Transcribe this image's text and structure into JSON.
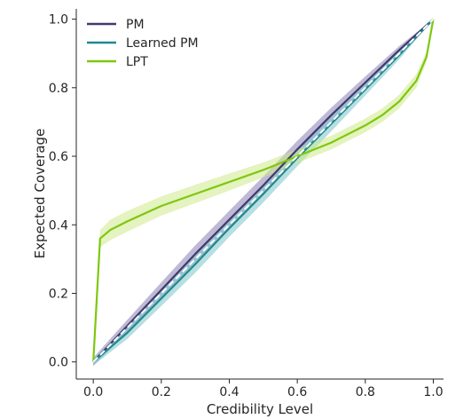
{
  "chart_data": {
    "type": "line",
    "title": "",
    "xlabel": "Credibility Level",
    "ylabel": "Expected Coverage",
    "xlim": [
      -0.05,
      1.03
    ],
    "ylim": [
      -0.05,
      1.03
    ],
    "xticks": [
      "0.0",
      "0.2",
      "0.4",
      "0.6",
      "0.8",
      "1.0"
    ],
    "yticks": [
      "0.0",
      "0.2",
      "0.4",
      "0.6",
      "0.8",
      "1.0"
    ],
    "grid": false,
    "legend_position": "top-left",
    "reference_line": {
      "style": "dashed",
      "color": "#ffffff",
      "x": [
        0,
        1
      ],
      "y": [
        0,
        1
      ]
    },
    "series": [
      {
        "name": "PM",
        "color": "#3f3a6e",
        "band_color": "#8a80b5",
        "x": [
          0,
          0.1,
          0.2,
          0.3,
          0.4,
          0.5,
          0.6,
          0.7,
          0.8,
          0.9,
          1.0
        ],
        "y": [
          0,
          0.105,
          0.21,
          0.315,
          0.415,
          0.515,
          0.62,
          0.72,
          0.815,
          0.91,
          1.0
        ],
        "band": [
          0.012,
          0.018,
          0.022,
          0.025,
          0.026,
          0.026,
          0.025,
          0.022,
          0.018,
          0.012,
          0
        ]
      },
      {
        "name": "Learned PM",
        "color": "#1f8a8f",
        "band_color": "#7cc4c8",
        "x": [
          0,
          0.1,
          0.2,
          0.3,
          0.4,
          0.5,
          0.6,
          0.7,
          0.8,
          0.9,
          1.0
        ],
        "y": [
          0,
          0.085,
          0.185,
          0.285,
          0.39,
          0.49,
          0.595,
          0.695,
          0.795,
          0.895,
          1.0
        ],
        "band": [
          0.01,
          0.018,
          0.022,
          0.025,
          0.025,
          0.025,
          0.024,
          0.022,
          0.018,
          0.012,
          0
        ]
      },
      {
        "name": "LPT",
        "color": "#7ec70f",
        "band_color": "#cdea8a",
        "x": [
          0,
          0.02,
          0.05,
          0.1,
          0.2,
          0.3,
          0.4,
          0.5,
          0.6,
          0.7,
          0.8,
          0.85,
          0.9,
          0.95,
          0.98,
          1.0
        ],
        "y": [
          0,
          0.36,
          0.385,
          0.41,
          0.455,
          0.49,
          0.525,
          0.56,
          0.6,
          0.64,
          0.69,
          0.72,
          0.76,
          0.82,
          0.89,
          1.0
        ],
        "band": [
          0,
          0.025,
          0.03,
          0.03,
          0.028,
          0.027,
          0.025,
          0.022,
          0.02,
          0.02,
          0.02,
          0.02,
          0.02,
          0.02,
          0.015,
          0
        ]
      }
    ]
  }
}
